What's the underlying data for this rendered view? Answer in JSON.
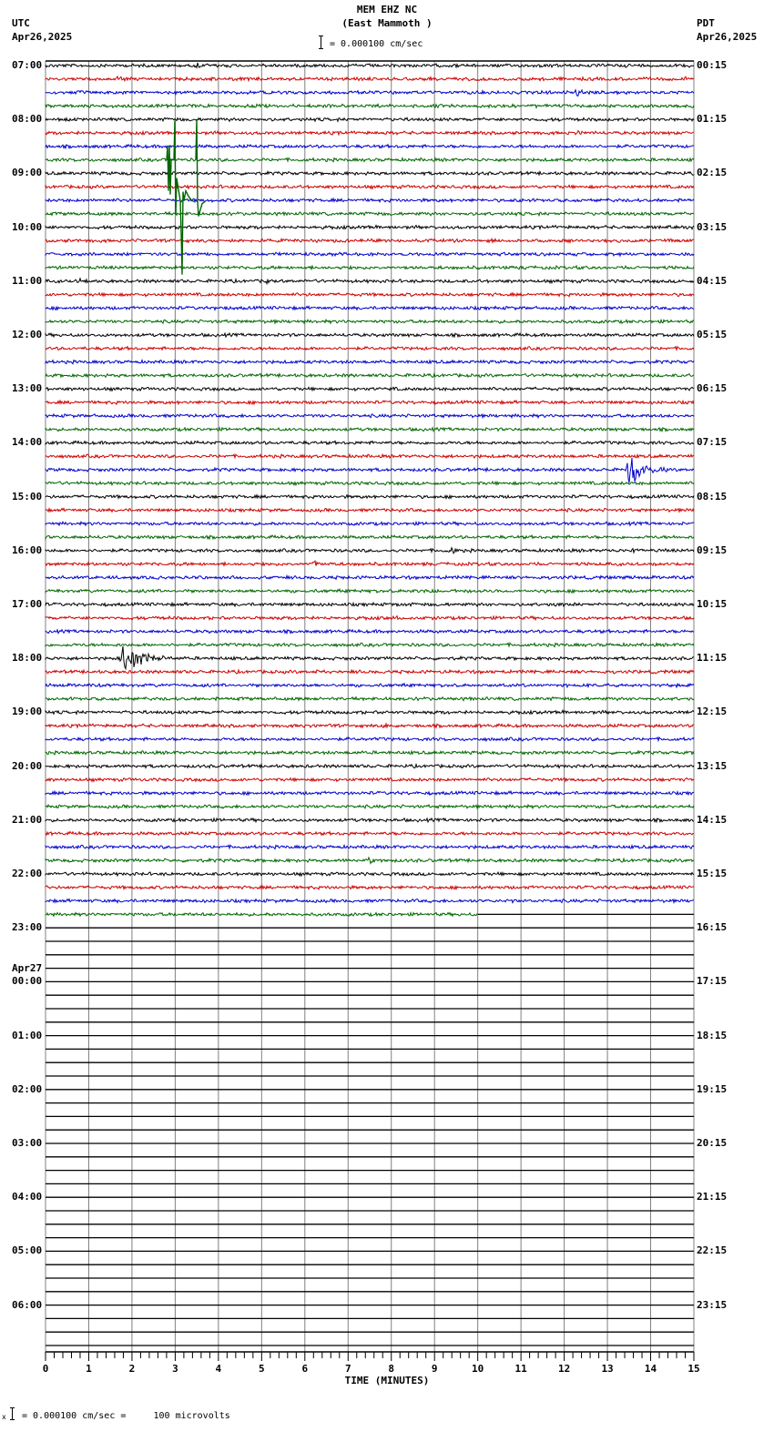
{
  "header": {
    "station": "MEM EHZ NC",
    "location": "(East Mammoth )",
    "scale": "= 0.000100 cm/sec",
    "left_tz": "UTC",
    "left_date": "Apr26,2025",
    "right_tz": "PDT",
    "right_date": "Apr26,2025"
  },
  "footer": {
    "marker": "x",
    "scale": "= 0.000100 cm/sec =     100 microvolts"
  },
  "colors": {
    "trace_cycle": [
      "#000000",
      "#cc0000",
      "#0000cc",
      "#006600"
    ],
    "grid": "#808080",
    "axis": "#000000"
  },
  "chart_data": {
    "type": "line",
    "title": "MEM EHZ NC (East Mammoth )",
    "subtitle": "= 0.000100 cm/sec",
    "xlabel": "TIME (MINUTES)",
    "ylabel": "",
    "x_ticks": [
      "0",
      "1",
      "2",
      "3",
      "4",
      "5",
      "6",
      "7",
      "8",
      "9",
      "10",
      "11",
      "12",
      "13",
      "14",
      "15"
    ],
    "xlim": [
      0,
      15
    ],
    "minor_ticks_per_minute": 5,
    "grid": true,
    "traces_per_hour": 4,
    "minutes_per_trace": 15,
    "total_rows": 96,
    "rows_with_data": 64,
    "last_row_data_end_minute": 10,
    "left_labels": [
      {
        "row": 0,
        "text": "07:00"
      },
      {
        "row": 4,
        "text": "08:00"
      },
      {
        "row": 8,
        "text": "09:00"
      },
      {
        "row": 12,
        "text": "10:00"
      },
      {
        "row": 16,
        "text": "11:00"
      },
      {
        "row": 20,
        "text": "12:00"
      },
      {
        "row": 24,
        "text": "13:00"
      },
      {
        "row": 28,
        "text": "14:00"
      },
      {
        "row": 32,
        "text": "15:00"
      },
      {
        "row": 36,
        "text": "16:00"
      },
      {
        "row": 40,
        "text": "17:00"
      },
      {
        "row": 44,
        "text": "18:00"
      },
      {
        "row": 48,
        "text": "19:00"
      },
      {
        "row": 52,
        "text": "20:00"
      },
      {
        "row": 56,
        "text": "21:00"
      },
      {
        "row": 60,
        "text": "22:00"
      },
      {
        "row": 64,
        "text": "23:00"
      },
      {
        "row": 68,
        "text": "00:00",
        "date": "Apr27"
      },
      {
        "row": 72,
        "text": "01:00"
      },
      {
        "row": 76,
        "text": "02:00"
      },
      {
        "row": 80,
        "text": "03:00"
      },
      {
        "row": 84,
        "text": "04:00"
      },
      {
        "row": 88,
        "text": "05:00"
      },
      {
        "row": 92,
        "text": "06:00"
      }
    ],
    "right_labels": [
      {
        "row": 0,
        "text": "00:15"
      },
      {
        "row": 4,
        "text": "01:15"
      },
      {
        "row": 8,
        "text": "02:15"
      },
      {
        "row": 12,
        "text": "03:15"
      },
      {
        "row": 16,
        "text": "04:15"
      },
      {
        "row": 20,
        "text": "05:15"
      },
      {
        "row": 24,
        "text": "06:15"
      },
      {
        "row": 28,
        "text": "07:15"
      },
      {
        "row": 32,
        "text": "08:15"
      },
      {
        "row": 36,
        "text": "09:15"
      },
      {
        "row": 40,
        "text": "10:15"
      },
      {
        "row": 44,
        "text": "11:15"
      },
      {
        "row": 48,
        "text": "12:15"
      },
      {
        "row": 52,
        "text": "13:15"
      },
      {
        "row": 56,
        "text": "14:15"
      },
      {
        "row": 60,
        "text": "15:15"
      },
      {
        "row": 64,
        "text": "16:15"
      },
      {
        "row": 68,
        "text": "17:15"
      },
      {
        "row": 72,
        "text": "18:15"
      },
      {
        "row": 76,
        "text": "19:15"
      },
      {
        "row": 80,
        "text": "20:15"
      },
      {
        "row": 84,
        "text": "21:15"
      },
      {
        "row": 88,
        "text": "22:15"
      },
      {
        "row": 92,
        "text": "23:15"
      }
    ],
    "events": [
      {
        "row": 0,
        "minute": 3.5,
        "amp": 6,
        "dur": 0.6
      },
      {
        "row": 1,
        "minute": 1.7,
        "amp": 6,
        "dur": 0.6
      },
      {
        "row": 1,
        "minute": 10.8,
        "amp": 4,
        "dur": 0.5
      },
      {
        "row": 1,
        "minute": 14.8,
        "amp": 5,
        "dur": 0.2
      },
      {
        "row": 2,
        "minute": 12.3,
        "amp": 6,
        "dur": 0.5
      },
      {
        "row": 5,
        "minute": 12.3,
        "amp": 4,
        "dur": 0.4
      },
      {
        "row": 7,
        "minute": 3.5,
        "amp": 60,
        "dur": 0.4,
        "type": "spike"
      },
      {
        "row": 10,
        "minute": 10.9,
        "amp": 3,
        "dur": 0.3
      },
      {
        "row": 15,
        "minute": 10.8,
        "amp": 3,
        "dur": 0.4
      },
      {
        "row": 16,
        "minute": 0.8,
        "amp": 4,
        "dur": 0.4
      },
      {
        "row": 16,
        "minute": 5.1,
        "amp": 4,
        "dur": 0.4
      },
      {
        "row": 18,
        "minute": 3.9,
        "amp": 3,
        "dur": 0.4
      },
      {
        "row": 24,
        "minute": 7.5,
        "amp": 3,
        "dur": 0.5
      },
      {
        "row": 30,
        "minute": 13.5,
        "amp": 22,
        "dur": 1.0
      },
      {
        "row": 36,
        "minute": 9.4,
        "amp": 8,
        "dur": 0.2
      },
      {
        "row": 36,
        "minute": 13.6,
        "amp": 3,
        "dur": 0.5
      },
      {
        "row": 37,
        "minute": 6.2,
        "amp": 5,
        "dur": 0.4
      },
      {
        "row": 39,
        "minute": 8.5,
        "amp": 3,
        "dur": 3.0
      },
      {
        "row": 40,
        "minute": 8.1,
        "amp": 5,
        "dur": 0.3
      },
      {
        "row": 40,
        "minute": 11.8,
        "amp": 4,
        "dur": 0.5
      },
      {
        "row": 41,
        "minute": 8.0,
        "amp": 4,
        "dur": 1.0
      },
      {
        "row": 44,
        "minute": 1.8,
        "amp": 22,
        "dur": 1.2
      },
      {
        "row": 45,
        "minute": 6.3,
        "amp": 4,
        "dur": 0.6
      },
      {
        "row": 49,
        "minute": 6.0,
        "amp": 4,
        "dur": 0.5
      },
      {
        "row": 49,
        "minute": 7.8,
        "amp": 4,
        "dur": 0.6
      },
      {
        "row": 59,
        "minute": 7.5,
        "amp": 5,
        "dur": 0.5
      },
      {
        "row": 62,
        "minute": 10.8,
        "amp": 4,
        "dur": 0.4
      }
    ]
  }
}
